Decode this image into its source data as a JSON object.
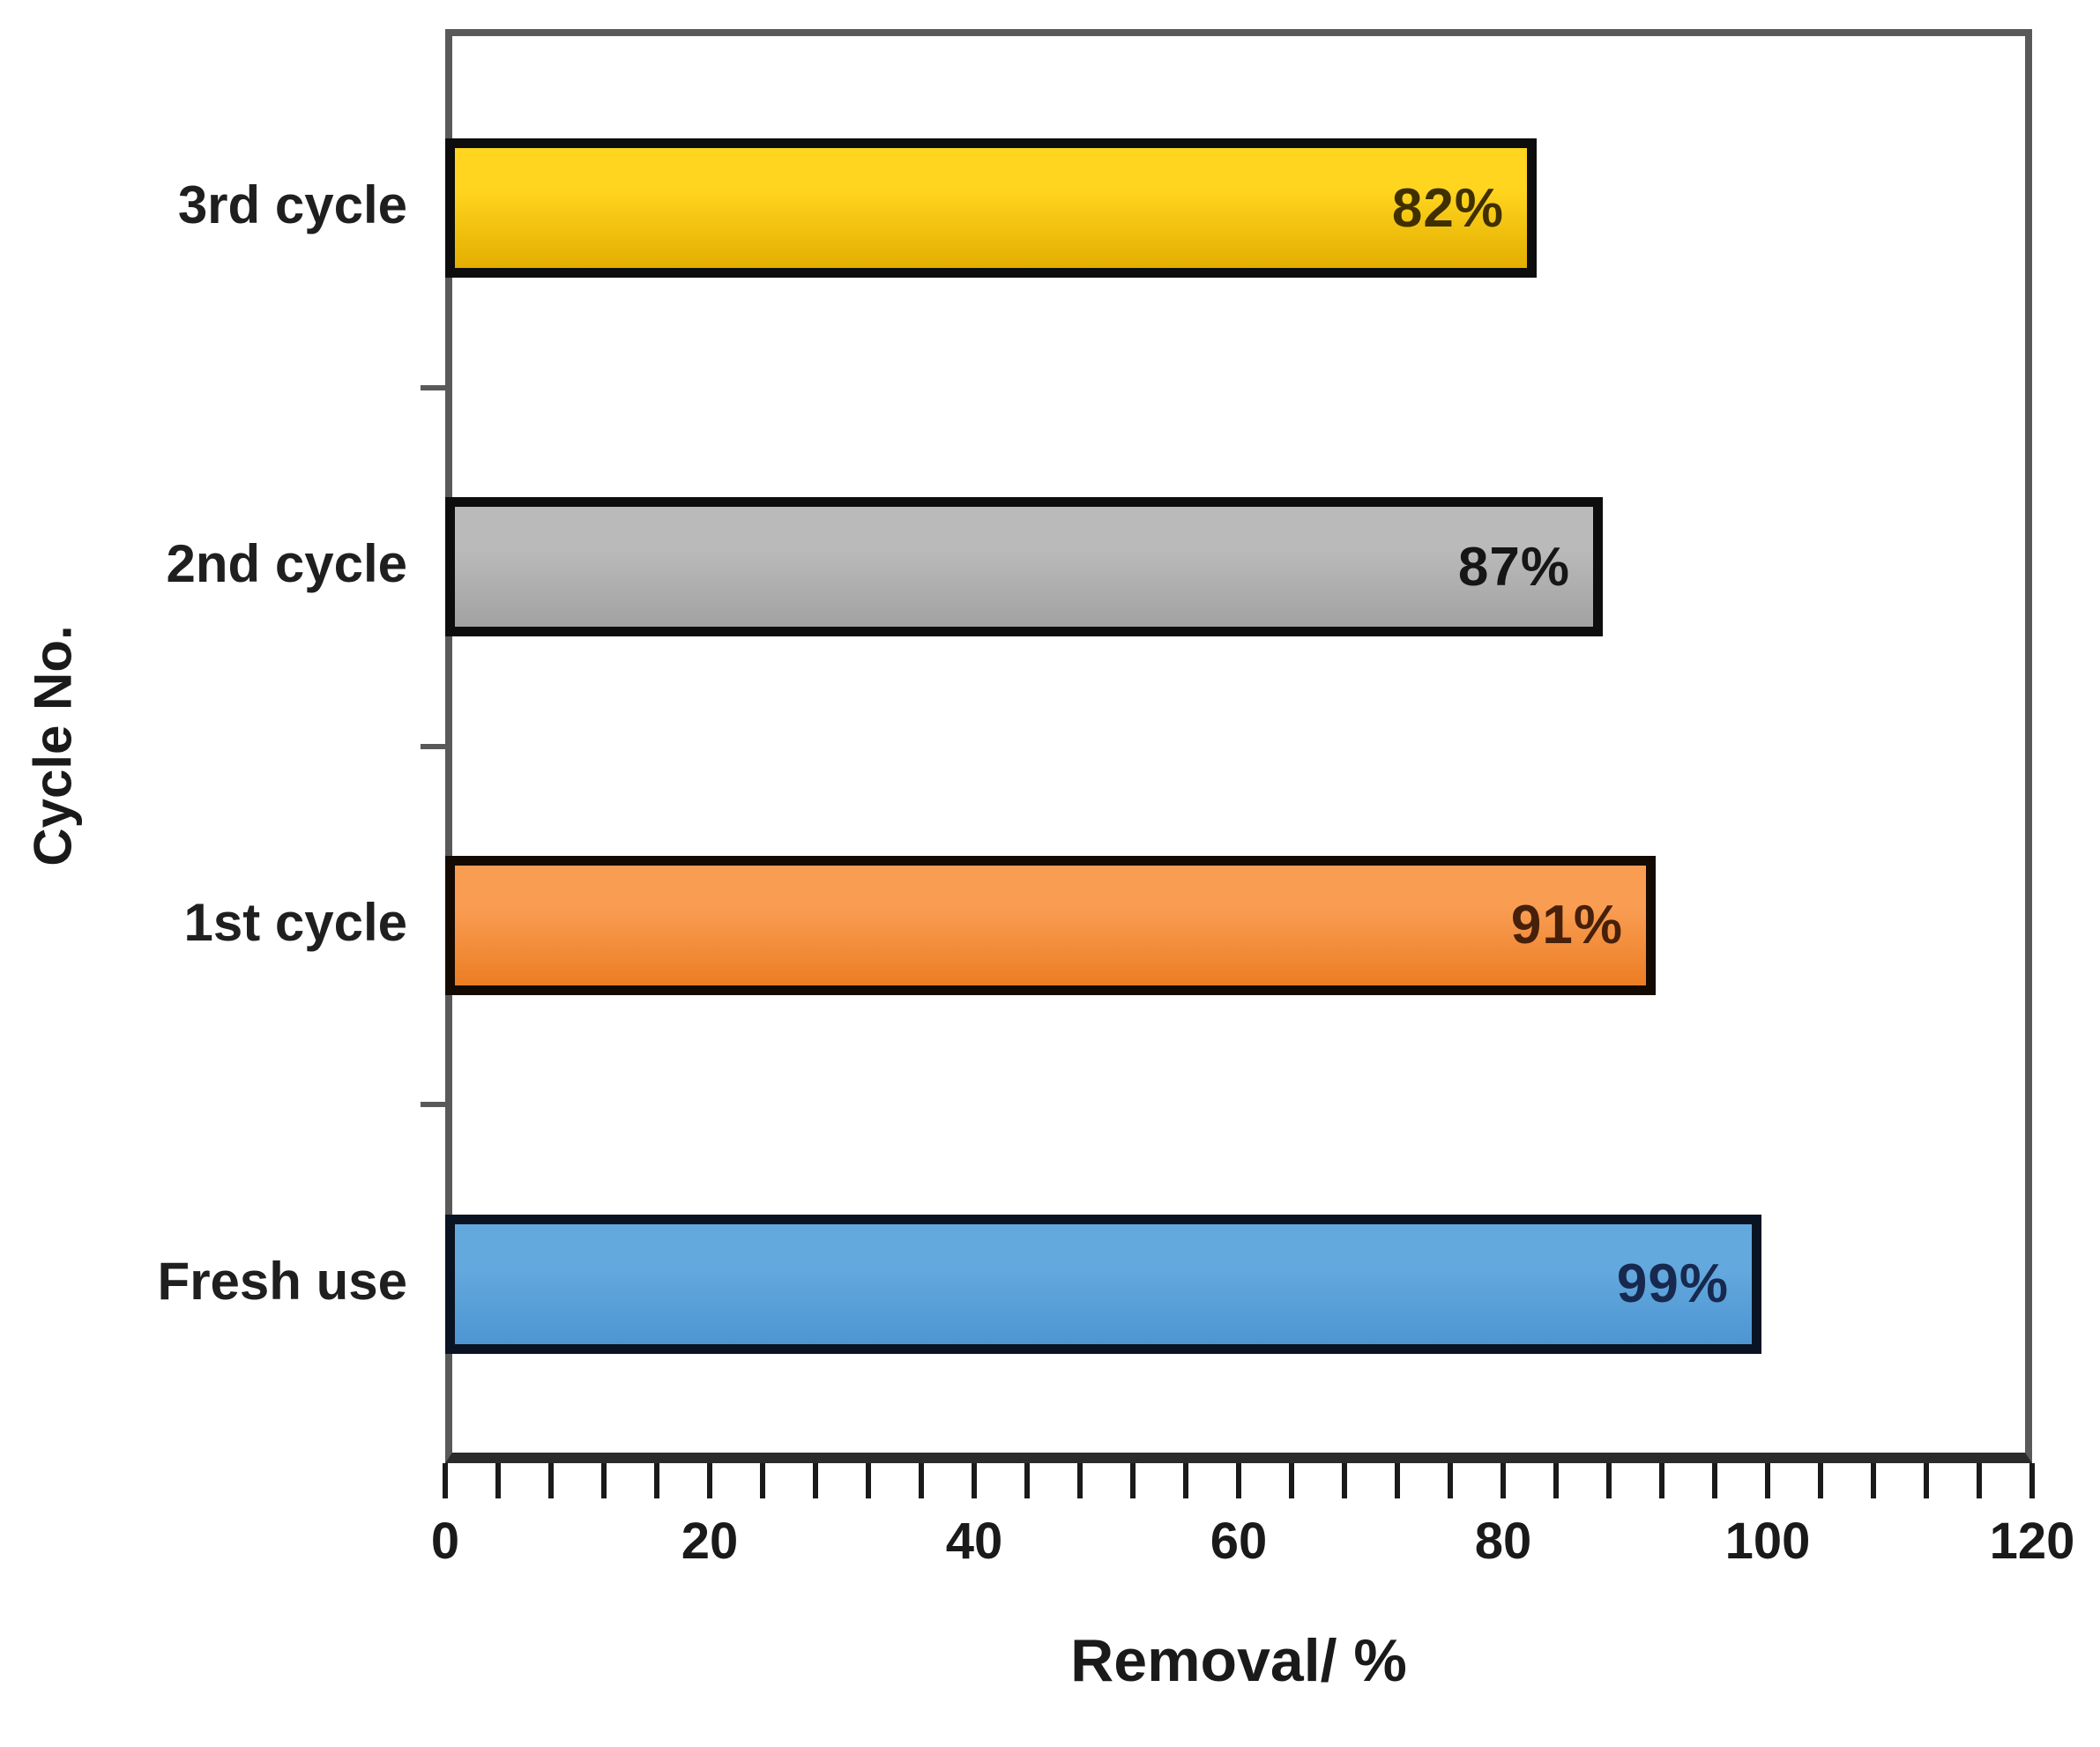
{
  "figure": {
    "background": "#ffffff",
    "plot_border_color": "#595959",
    "x_axis_line_color": "#2b2b2b",
    "tick_color": "#1a1a1a",
    "text_color": "#1f1f1f"
  },
  "chart_data": {
    "type": "bar",
    "orientation": "horizontal",
    "title": "",
    "xlabel": "Removal/ %",
    "ylabel": "Cycle No.",
    "xlim": [
      0,
      120
    ],
    "x_major_ticks": [
      0,
      20,
      40,
      60,
      80,
      100,
      120
    ],
    "x_minor_tick_step": 4,
    "grid": false,
    "legend": false,
    "data_label_position": "inside-end",
    "categories": [
      "3rd cycle",
      "2nd cycle",
      "1st cycle",
      "Fresh use"
    ],
    "values": [
      82,
      87,
      91,
      99
    ],
    "data_labels": [
      "82%",
      "87%",
      "91%",
      "99%"
    ],
    "bars": [
      {
        "category": "3rd cycle",
        "value": 82,
        "label": "82%",
        "fill_light": "#ffd51f",
        "fill_dark": "#e3ae00",
        "border_color": "#0d0d0d",
        "label_color": "#403000"
      },
      {
        "category": "2nd cycle",
        "value": 87,
        "label": "87%",
        "fill_light": "#bababa",
        "fill_dark": "#a2a2a2",
        "border_color": "#0d0d0d",
        "label_color": "#161616"
      },
      {
        "category": "1st cycle",
        "value": 91,
        "label": "91%",
        "fill_light": "#f99d53",
        "fill_dark": "#ec7d23",
        "border_color": "#140a02",
        "label_color": "#47200a"
      },
      {
        "category": "Fresh use",
        "value": 99,
        "label": "99%",
        "fill_light": "#64a9de",
        "fill_dark": "#4d96d3",
        "border_color": "#0a1322",
        "label_color": "#17294f"
      }
    ]
  }
}
